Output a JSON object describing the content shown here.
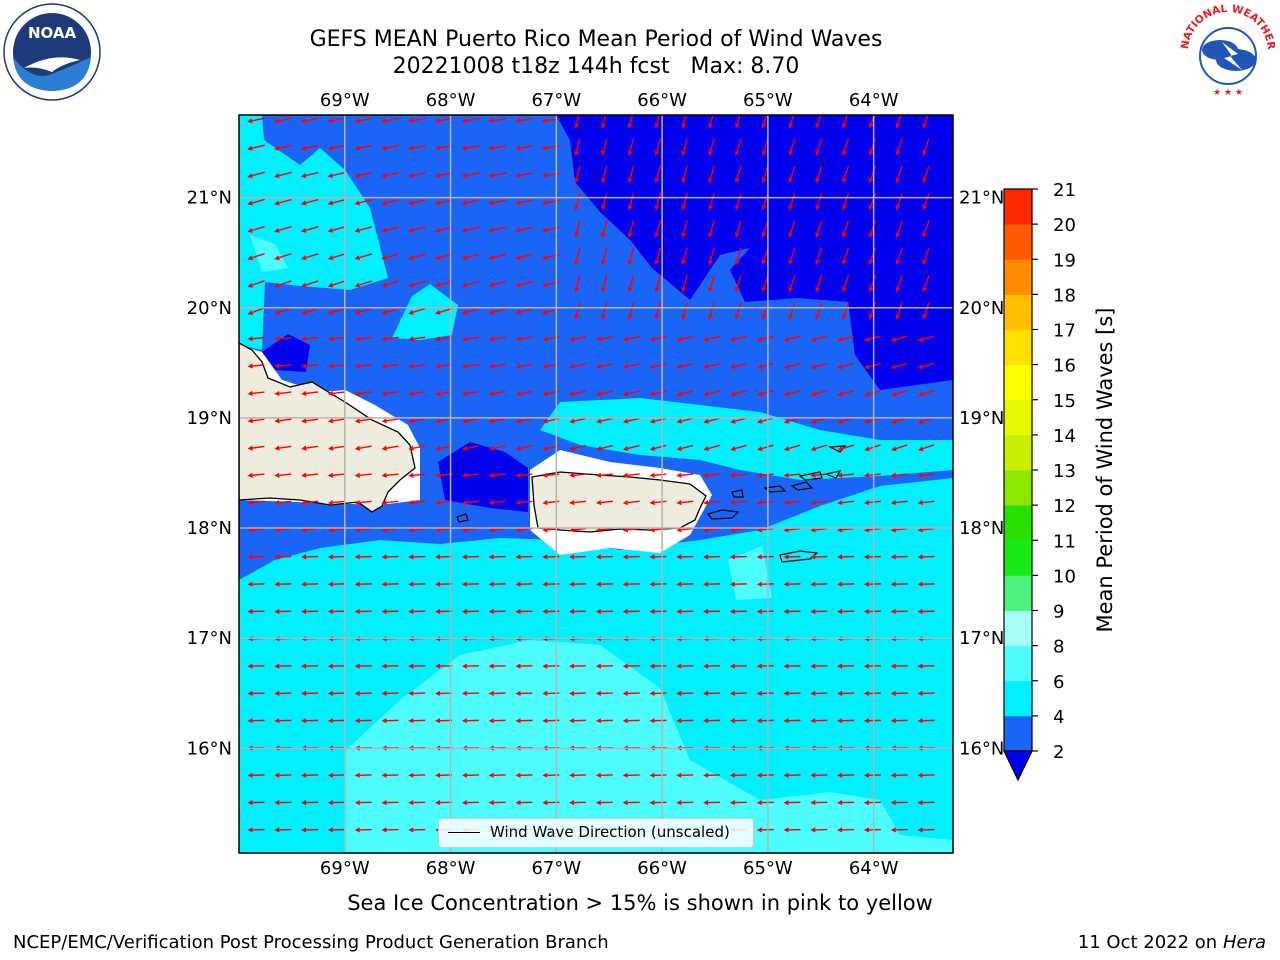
{
  "header": {
    "title_line1": "GEFS MEAN Puerto Rico Mean Period of Wind Waves",
    "title_line2": "20221008 t18z 144h fcst   Max: 8.70"
  },
  "logos": {
    "left": "noaa-logo",
    "right": "nws-logo",
    "left_text": "NOAA",
    "right_text": "NATIONAL WEATHER SERVICE"
  },
  "map": {
    "lon_labels": [
      "69°W",
      "68°W",
      "67°W",
      "66°W",
      "65°W",
      "64°W"
    ],
    "lat_labels": [
      "21°N",
      "20°N",
      "19°N",
      "18°N",
      "17°N",
      "16°N"
    ],
    "lon_values": [
      -69,
      -68,
      -67,
      -66,
      -65,
      -64
    ],
    "lat_values": [
      21,
      20,
      19,
      18,
      17,
      16
    ],
    "lon_range": [
      -70,
      -63.25
    ],
    "lat_range": [
      15.05,
      21.75
    ],
    "arrow_color": "#ff0000",
    "land_color": "#eeecdc",
    "grid": true
  },
  "legend": {
    "label": "Wind Wave Direction (unscaled)"
  },
  "colorbar": {
    "label": "Mean Period of Wind Waves [s]",
    "ticks": [
      2,
      4,
      6,
      8,
      9,
      10,
      11,
      12,
      13,
      14,
      15,
      16,
      17,
      18,
      19,
      20,
      21
    ],
    "colors": [
      "#1a64f6",
      "#00f0ff",
      "#4dfcfc",
      "#a6fff6",
      "#4ff07e",
      "#18e818",
      "#28e000",
      "#8ce800",
      "#c8f000",
      "#e8f800",
      "#ffff00",
      "#ffe000",
      "#ffbe00",
      "#ff8c00",
      "#ff5a00",
      "#ff2800",
      "#ff0000"
    ],
    "extend_color": "#0000ee"
  },
  "caption": "Sea Ice Concentration > 15% is shown in pink to yellow",
  "footer": {
    "left": "NCEP/EMC/Verification Post Processing Product Generation Branch",
    "right_prefix": "11 Oct 2022 on ",
    "right_italic": "Hera"
  }
}
